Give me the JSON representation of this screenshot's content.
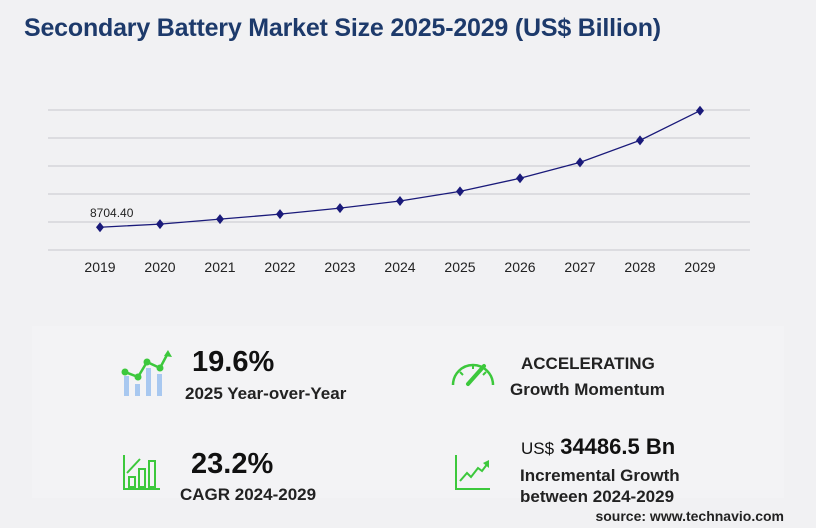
{
  "title": "Secondary Battery Market Size 2025-2029 (US$ Billion)",
  "chart_data": {
    "type": "line",
    "title": "Secondary Battery Market Size 2025-2029 (US$ Billion)",
    "categories": [
      "2019",
      "2020",
      "2021",
      "2022",
      "2023",
      "2024",
      "2025",
      "2026",
      "2027",
      "2028",
      "2029"
    ],
    "values": [
      8704.4,
      9900,
      11800,
      13700,
      16000,
      18740,
      22410,
      27400,
      33500,
      41900,
      53230
    ],
    "data_labels": {
      "2019": "8704.40"
    },
    "ylim": [
      0,
      53500
    ],
    "grid": true,
    "line_color": "#1a1a7a",
    "marker": "diamond"
  },
  "stats": {
    "yoy_value": "19.6%",
    "yoy_label": "2025 Year-over-Year",
    "momentum_value": "ACCELERATING",
    "momentum_label": "Growth Momentum",
    "cagr_value": "23.2%",
    "cagr_label": "CAGR 2024-2029",
    "incr_prefix": "US$",
    "incr_value": "34486.5 Bn",
    "incr_label1": "Incremental Growth",
    "incr_label2": "between 2024-2029"
  },
  "source": "source: www.technavio.com",
  "colors": {
    "accent_green": "#3cc83c",
    "title": "#1d3a6b",
    "bar_blue": "#a8c8f0"
  }
}
